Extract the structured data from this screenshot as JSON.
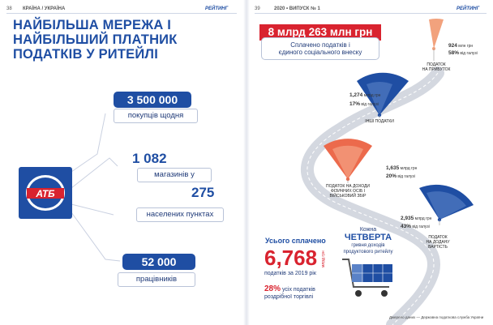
{
  "left_page": {
    "page_number": "38",
    "section": "КРАЇНА / УКРАЇНА",
    "rubric": "РЕЙТИНГ",
    "title_lines": [
      "НАЙБІЛЬША МЕРЕЖА І",
      "НАЙБІЛЬШИЙ ПЛАТНИК",
      "ПОДАТКІВ У РИТЕЙЛІ"
    ],
    "logo_text": "АТБ",
    "stats": {
      "customers_value": "3 500 000",
      "customers_label": "покупців щодня",
      "stores_value": "1 082",
      "stores_label": "магазинів у",
      "settlements_value": "275",
      "settlements_label": "населених пунктах",
      "employees_value": "52 000",
      "employees_label": "працівників"
    }
  },
  "right_page": {
    "page_number": "39",
    "issue": "2020 • ВИПУСК № 1",
    "rubric": "РЕЙТИНГ",
    "headline_value": "8 млрд 263 млн грн",
    "headline_line1": "Сплачено податків і",
    "headline_line2": "єдиного соціального внеску",
    "taxes": [
      {
        "id": "profit",
        "amount": "924",
        "amount_unit": "млн грн",
        "share": "58%",
        "share_unit": "від галузі",
        "label_lines": [
          "ПОДАТОК",
          "НА ПРИБУТОК"
        ],
        "color": "#f2a27d"
      },
      {
        "id": "other",
        "amount": "1,274",
        "amount_unit": "млрд грн",
        "share": "17%",
        "share_unit": "від галузі",
        "label_lines": [
          "ІНШІ ПОДАТКИ"
        ],
        "color": "#1f4ea3"
      },
      {
        "id": "pdfo",
        "amount": "1,635",
        "amount_unit": "млрд грн",
        "share": "20%",
        "share_unit": "від галузі",
        "label_lines": [
          "ПОДАТОК НА ДОХОДИ",
          "ФІЗИЧНИХ ОСІБ І",
          "ВІЙСЬКОВИЙ ЗБІР"
        ],
        "color": "#ec6a4c"
      },
      {
        "id": "vat",
        "amount": "2,935",
        "amount_unit": "млрд грн",
        "share": "43%",
        "share_unit": "від галузі",
        "label_lines": [
          "ПОДАТОК",
          "НА ДОДАНУ",
          "ВАРТІСТЬ"
        ],
        "color": "#1f4ea3"
      }
    ],
    "total": {
      "heading": "Усього сплачено",
      "value": "6,768",
      "unit": "млрд грн",
      "note": "податків за 2019 рік",
      "share": "28%",
      "share_note_line1": "усіх податків",
      "share_note_line2": "роздрібної торгівлі"
    },
    "cart": {
      "line1": "Кожна",
      "highlight": "ЧЕТВЕРТА",
      "line3": "гривня доходів",
      "line4": "продуктового ритейлу"
    },
    "source": "Джерело даних — Державна податкова служба України"
  },
  "colors": {
    "brand_blue": "#1f4ea3",
    "accent_red": "#d9232f",
    "road_gray": "#d4d8e0"
  }
}
